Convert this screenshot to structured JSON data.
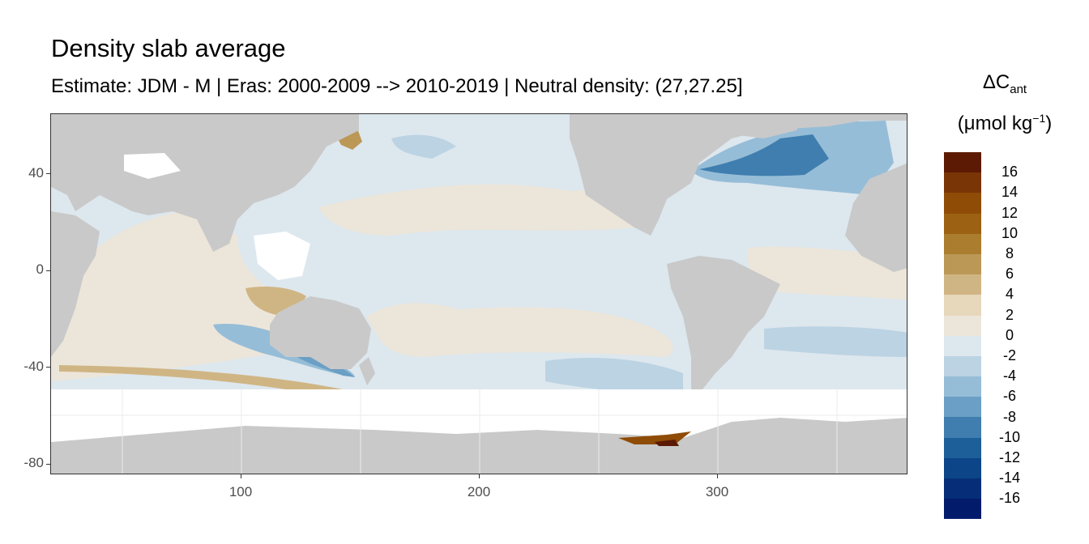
{
  "title": "Density slab average",
  "subtitle": "Estimate: JDM - M | Eras: 2000-2009 --> 2010-2019 | Neutral density: (27,27.25]",
  "legend": {
    "title_main": "ΔC",
    "title_sub": "ant",
    "unit_prefix": "(μmol kg",
    "unit_sup": "−1",
    "unit_suffix": ")",
    "labels": [
      "16",
      "14",
      "12",
      "10",
      "8",
      "6",
      "4",
      "2",
      "0",
      "-2",
      "-4",
      "-6",
      "-8",
      "-10",
      "-12",
      "-14",
      "-16"
    ],
    "colors": [
      "#5c1a04",
      "#7a3506",
      "#8f4c07",
      "#9c6112",
      "#ab7d2e",
      "#bc9857",
      "#d0b584",
      "#e7d7bb",
      "#ece6da",
      "#dde7ee",
      "#bcd3e3",
      "#96bdd7",
      "#6b9fc5",
      "#3f7eaf",
      "#1d5f98",
      "#0c4588",
      "#062e78",
      "#021c6b"
    ]
  },
  "axes": {
    "x_ticks": [
      "100",
      "200",
      "300"
    ],
    "y_ticks": [
      "40",
      "0",
      "-40",
      "-80"
    ]
  },
  "colors": {
    "land": "#c9c9c9",
    "no_data": "#ffffff",
    "ocean_base": "#dde7ee"
  }
}
